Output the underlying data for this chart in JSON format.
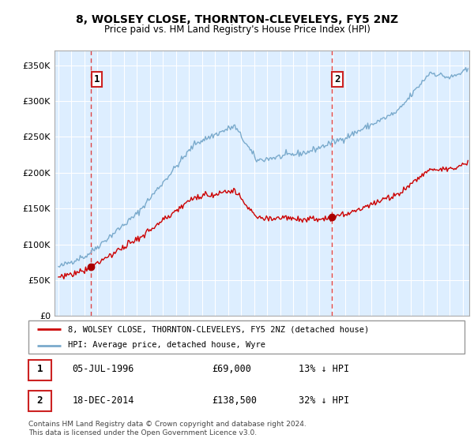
{
  "title": "8, WOLSEY CLOSE, THORNTON-CLEVELEYS, FY5 2NZ",
  "subtitle": "Price paid vs. HM Land Registry's House Price Index (HPI)",
  "ytick_values": [
    0,
    50000,
    100000,
    150000,
    200000,
    250000,
    300000,
    350000
  ],
  "ylim": [
    0,
    370000
  ],
  "xlim_start": 1993.7,
  "xlim_end": 2025.5,
  "sale1_date": 1996.51,
  "sale1_price": 69000,
  "sale1_label": "1",
  "sale2_date": 2014.96,
  "sale2_price": 138500,
  "sale2_label": "2",
  "legend_line1": "8, WOLSEY CLOSE, THORNTON-CLEVELEYS, FY5 2NZ (detached house)",
  "legend_line2": "HPI: Average price, detached house, Wyre",
  "table_row1": [
    "1",
    "05-JUL-1996",
    "£69,000",
    "13% ↓ HPI"
  ],
  "table_row2": [
    "2",
    "18-DEC-2014",
    "£138,500",
    "32% ↓ HPI"
  ],
  "footer": "Contains HM Land Registry data © Crown copyright and database right 2024.\nThis data is licensed under the Open Government Licence v3.0.",
  "red_line_color": "#cc0000",
  "blue_line_color": "#7aaacc",
  "bg_color": "#ddeeff",
  "grid_color": "#ffffff",
  "sale_marker_color": "#aa0000",
  "vline_color": "#dd4444",
  "box_color": "#cc2222"
}
